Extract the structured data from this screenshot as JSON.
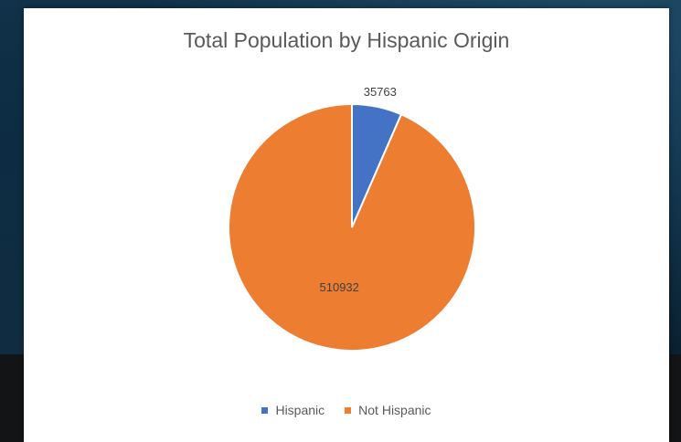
{
  "chart_data": {
    "type": "pie",
    "title": "Total Population by Hispanic Origin",
    "categories": [
      "Hispanic",
      "Not Hispanic"
    ],
    "values": [
      35763,
      510932
    ],
    "colors": [
      "#4472c4",
      "#ed7d31"
    ],
    "data_labels": [
      "35763",
      "510932"
    ],
    "legend_position": "bottom",
    "slice_border_color": "#ffffff"
  }
}
